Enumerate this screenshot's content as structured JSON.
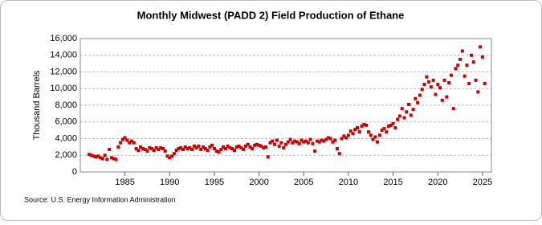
{
  "chart_data": {
    "type": "scatter",
    "title": "Monthly Midwest (PADD 2) Field Production of Ethane",
    "y_label": "Thousand Barrels",
    "source": "Source: U.S. Energy Information Administration",
    "color": "#cc0000",
    "grid": true,
    "xlim": [
      1980,
      2026
    ],
    "xticks": [
      1985,
      1990,
      1995,
      2000,
      2005,
      2010,
      2015,
      2020,
      2025
    ],
    "ylim": [
      0,
      16000
    ],
    "yticks": [
      0,
      {
        "value": 2000,
        "label": "2,000"
      },
      {
        "value": 4000,
        "label": "4,000"
      },
      {
        "value": 6000,
        "label": "6,000"
      },
      {
        "value": 8000,
        "label": "8,000"
      },
      {
        "value": 10000,
        "label": "10,000"
      },
      {
        "value": 12000,
        "label": "12,000"
      },
      {
        "value": 14000,
        "label": "14,000"
      },
      {
        "value": 16000,
        "label": "16,000"
      }
    ],
    "x": [
      1981,
      1981.25,
      1981.5,
      1981.75,
      1982,
      1982.25,
      1982.5,
      1982.75,
      1983,
      1983.25,
      1983.5,
      1983.75,
      1984,
      1984.25,
      1984.5,
      1984.75,
      1985,
      1985.25,
      1985.5,
      1985.75,
      1986,
      1986.25,
      1986.5,
      1986.75,
      1987,
      1987.25,
      1987.5,
      1987.75,
      1988,
      1988.25,
      1988.5,
      1988.75,
      1989,
      1989.25,
      1989.5,
      1989.75,
      1990,
      1990.25,
      1990.5,
      1990.75,
      1991,
      1991.25,
      1991.5,
      1991.75,
      1992,
      1992.25,
      1992.5,
      1992.75,
      1993,
      1993.25,
      1993.5,
      1993.75,
      1994,
      1994.25,
      1994.5,
      1994.75,
      1995,
      1995.25,
      1995.5,
      1995.75,
      1996,
      1996.25,
      1996.5,
      1996.75,
      1997,
      1997.25,
      1997.5,
      1997.75,
      1998,
      1998.25,
      1998.5,
      1998.75,
      1999,
      1999.25,
      1999.5,
      1999.75,
      2000,
      2000.25,
      2000.5,
      2000.75,
      2001,
      2001.25,
      2001.5,
      2001.75,
      2002,
      2002.25,
      2002.5,
      2002.75,
      2003,
      2003.25,
      2003.5,
      2003.75,
      2004,
      2004.25,
      2004.5,
      2004.75,
      2005,
      2005.25,
      2005.5,
      2005.75,
      2006,
      2006.25,
      2006.5,
      2006.75,
      2007,
      2007.25,
      2007.5,
      2007.75,
      2008,
      2008.25,
      2008.5,
      2008.75,
      2009,
      2009.25,
      2009.5,
      2009.75,
      2010,
      2010.25,
      2010.5,
      2010.75,
      2011,
      2011.25,
      2011.5,
      2011.75,
      2012,
      2012.25,
      2012.5,
      2012.75,
      2013,
      2013.25,
      2013.5,
      2013.75,
      2014,
      2014.25,
      2014.5,
      2014.75,
      2015,
      2015.25,
      2015.5,
      2015.75,
      2016,
      2016.25,
      2016.5,
      2016.75,
      2017,
      2017.25,
      2017.5,
      2017.75,
      2018,
      2018.25,
      2018.5,
      2018.75,
      2019,
      2019.25,
      2019.5,
      2019.75,
      2020,
      2020.25,
      2020.5,
      2020.75,
      2021,
      2021.25,
      2021.5,
      2021.75,
      2022,
      2022.25,
      2022.5,
      2022.75,
      2023,
      2023.25,
      2023.5,
      2023.75,
      2024,
      2024.25,
      2024.5,
      2024.75,
      2025,
      2025.25
    ],
    "values": [
      2100,
      2000,
      1900,
      1800,
      1900,
      1700,
      1600,
      2000,
      1500,
      2700,
      1700,
      1600,
      1500,
      3000,
      3500,
      3900,
      4100,
      3800,
      3500,
      3700,
      3500,
      2800,
      2600,
      3000,
      2800,
      2700,
      2500,
      2900,
      2800,
      2600,
      2900,
      2700,
      2900,
      2800,
      2500,
      1900,
      1700,
      1900,
      2200,
      2600,
      2800,
      2900,
      2700,
      3000,
      2800,
      2900,
      2700,
      3100,
      2900,
      3100,
      2700,
      3000,
      2800,
      2600,
      3000,
      3200,
      2800,
      2500,
      2400,
      2700,
      3000,
      2800,
      3100,
      2900,
      2800,
      2600,
      3000,
      3100,
      2900,
      2700,
      3100,
      3300,
      3000,
      2800,
      3200,
      3300,
      3200,
      3100,
      2900,
      3000,
      1800,
      3500,
      3700,
      3300,
      3800,
      3100,
      3500,
      2900,
      3300,
      3600,
      3900,
      3500,
      3700,
      3600,
      3400,
      3800,
      3600,
      3700,
      3500,
      3900,
      3400,
      2500,
      3700,
      3600,
      3800,
      3700,
      3900,
      4100,
      4000,
      3600,
      3800,
      2800,
      2200,
      4000,
      4300,
      4100,
      4400,
      4900,
      4600,
      5100,
      5300,
      4800,
      5500,
      5700,
      5600,
      4800,
      4400,
      3900,
      4200,
      3600,
      4400,
      5000,
      5200,
      4800,
      5500,
      5600,
      5800,
      5300,
      6300,
      6700,
      7600,
      6500,
      7200,
      8100,
      6800,
      7500,
      8800,
      8300,
      9200,
      9900,
      10500,
      11400,
      10800,
      10200,
      11000,
      9300,
      10500,
      10100,
      8600,
      11000,
      9000,
      10700,
      11600,
      7600,
      12400,
      12800,
      13500,
      14500,
      11500,
      12800,
      10600,
      14000,
      13200,
      11000,
      9600,
      15000,
      13800,
      10600
    ]
  }
}
